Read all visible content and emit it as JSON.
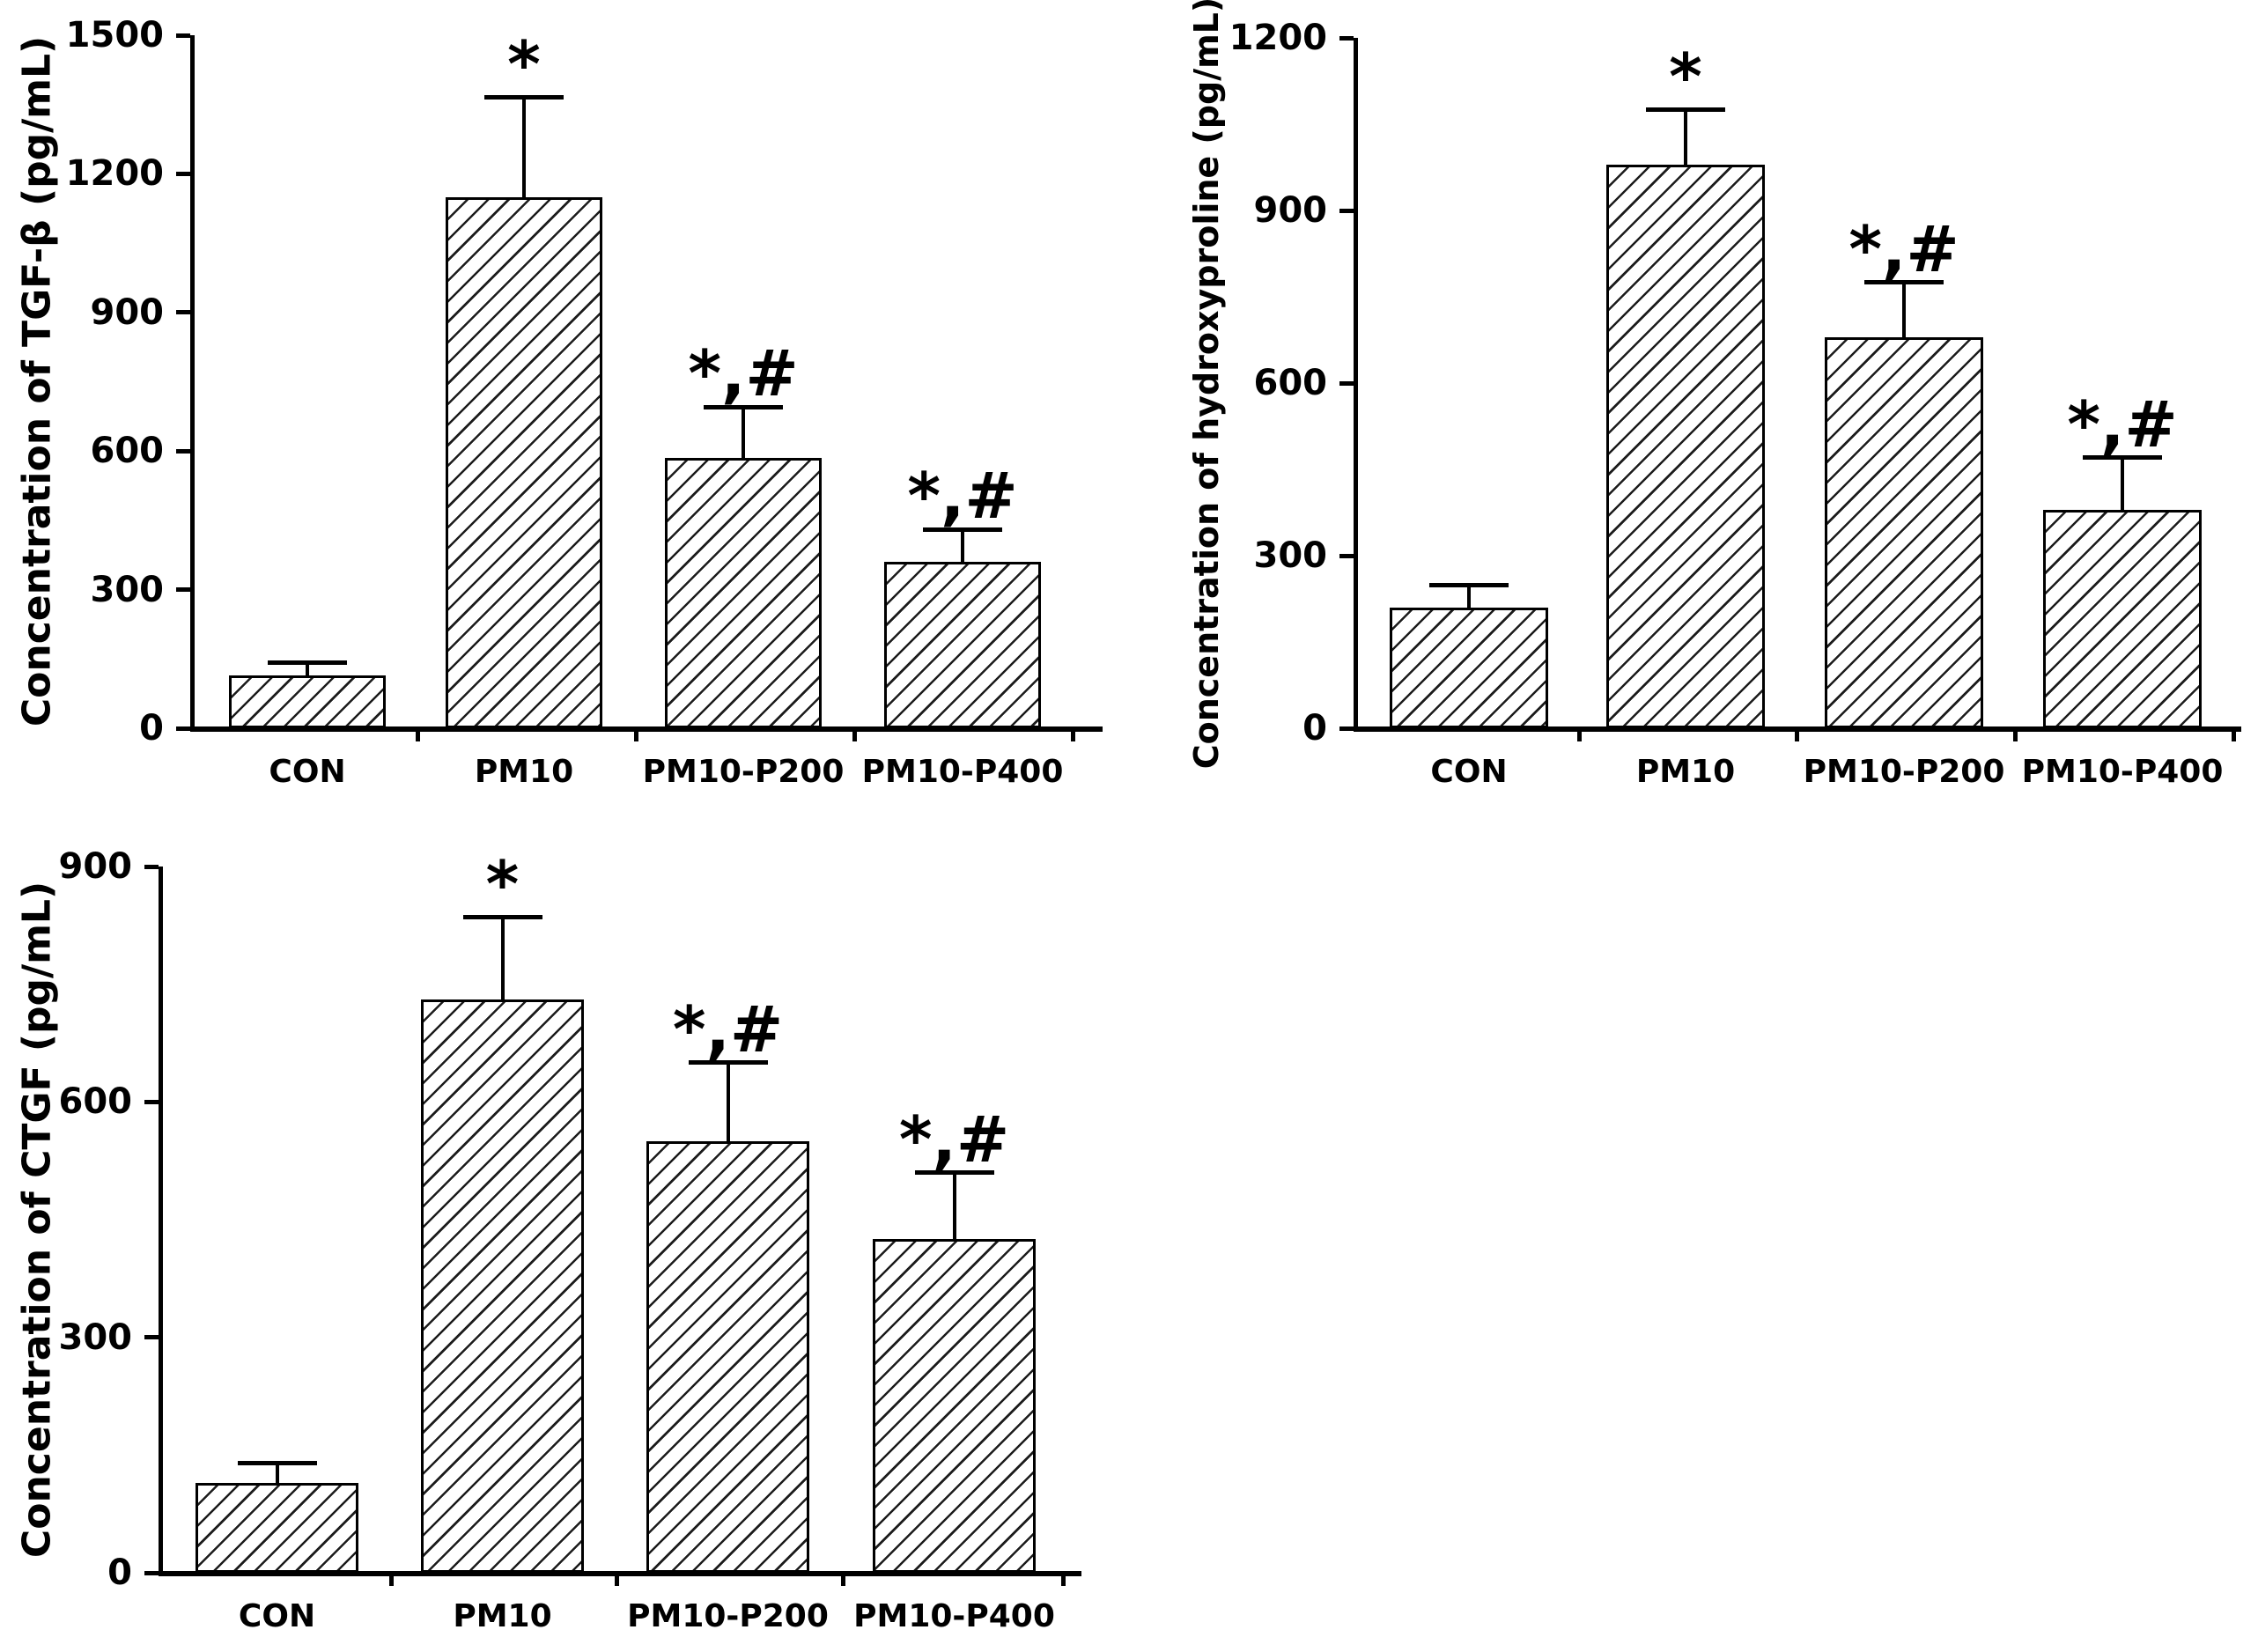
{
  "figure": {
    "background": "#ffffff",
    "description": "Three hatched bar charts with SEM error bars comparing CON, PM10, PM10-P200, PM10-P400 groups"
  },
  "style": {
    "axis_color": "#000000",
    "bar_fill": "#ffffff",
    "hatch_color": "#1c1c1c",
    "text_color": "#000000"
  },
  "chart_data": [
    {
      "id": "tgf-beta",
      "type": "bar",
      "title": "",
      "xlabel": "",
      "ylabel": "Concentration of TGF-β (pg/mL)",
      "categories": [
        "CON",
        "PM10",
        "PM10-P200",
        "PM10-P400"
      ],
      "values": [
        115,
        1150,
        585,
        360
      ],
      "errors": [
        27,
        215,
        110,
        70
      ],
      "annotations": [
        "",
        "*",
        "*,#",
        "*,#"
      ],
      "ylim": [
        0,
        1500
      ],
      "yticks": [
        0,
        300,
        600,
        900,
        1200,
        1500
      ],
      "grid": false,
      "legend": "none",
      "bar_style": "diagonal-hatch"
    },
    {
      "id": "hydroxyproline",
      "type": "bar",
      "title": "",
      "xlabel": "",
      "ylabel": "Concentration of hydroxyproline (pg/mL)",
      "categories": [
        "CON",
        "PM10",
        "PM10-P200",
        "PM10-P400"
      ],
      "values": [
        210,
        980,
        680,
        380
      ],
      "errors": [
        38,
        95,
        95,
        90
      ],
      "annotations": [
        "",
        "*",
        "*,#",
        "*,#"
      ],
      "ylim": [
        0,
        1200
      ],
      "yticks": [
        0,
        300,
        600,
        900,
        1200
      ],
      "grid": false,
      "legend": "none",
      "bar_style": "diagonal-hatch"
    },
    {
      "id": "ctgf",
      "type": "bar",
      "title": "",
      "xlabel": "",
      "ylabel": "Concentration of CTGF (pg/mL)",
      "categories": [
        "CON",
        "PM10",
        "PM10-P200",
        "PM10-P400"
      ],
      "values": [
        115,
        730,
        550,
        425
      ],
      "errors": [
        25,
        105,
        100,
        85
      ],
      "annotations": [
        "",
        "*",
        "*,#",
        "*,#"
      ],
      "ylim": [
        0,
        900
      ],
      "yticks": [
        0,
        300,
        600,
        900
      ],
      "grid": false,
      "legend": "none",
      "bar_style": "diagonal-hatch"
    }
  ]
}
